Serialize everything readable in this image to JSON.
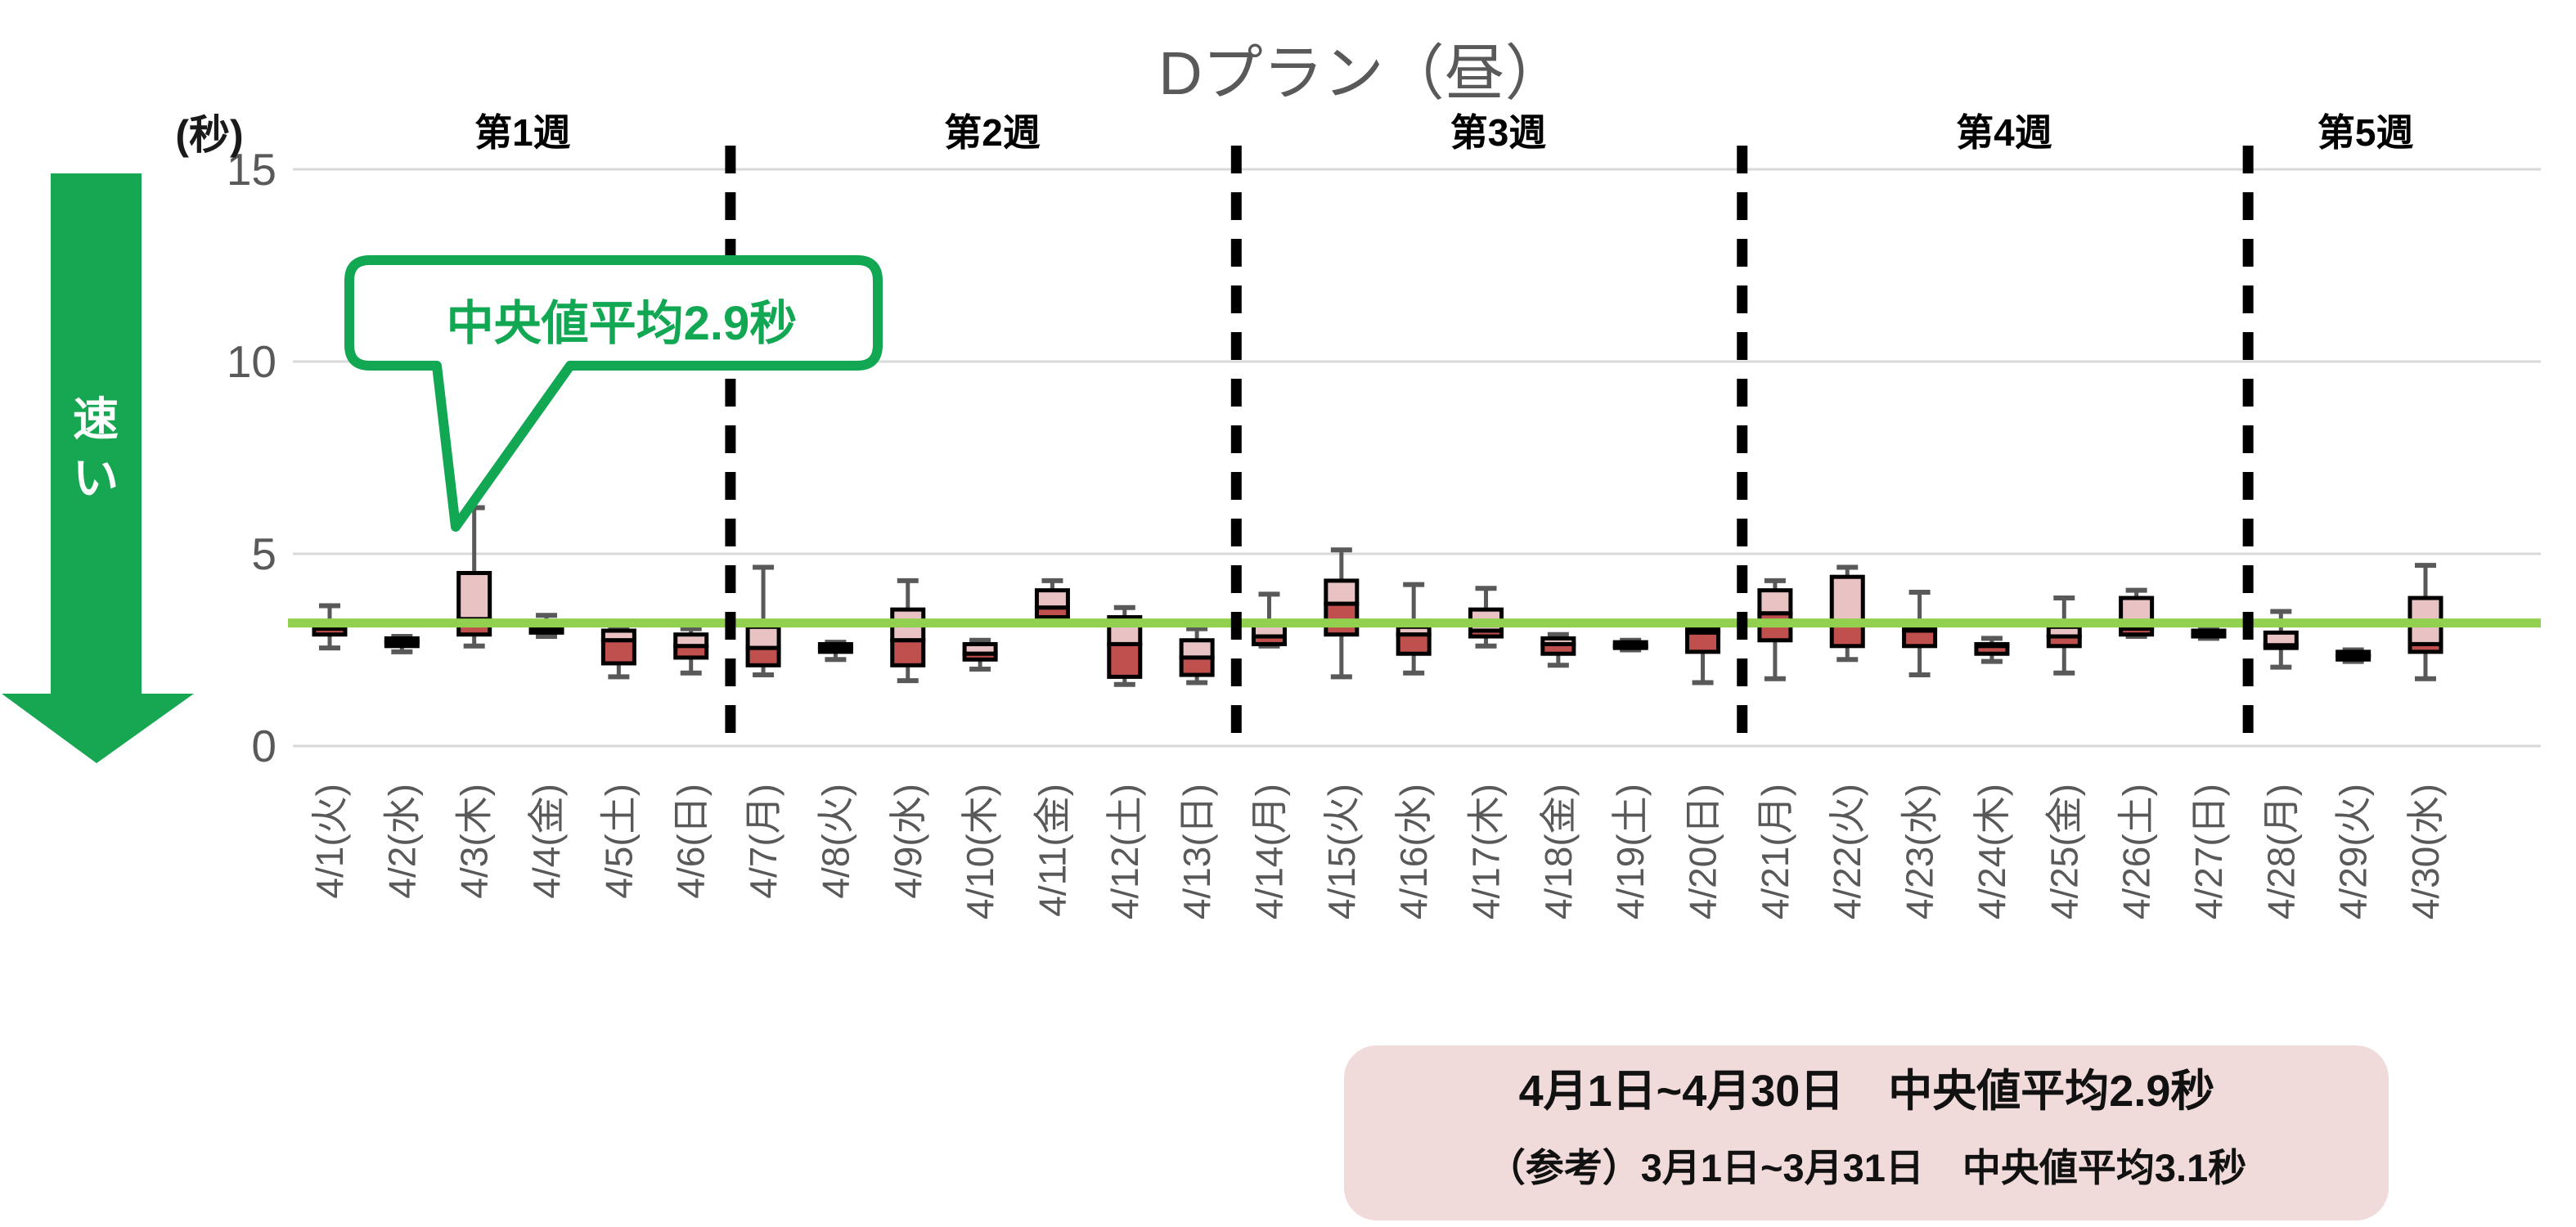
{
  "title": "Dプラン（昼）",
  "y_axis": {
    "unit": "(秒)",
    "ticks": [
      "15",
      "10",
      "5",
      "0"
    ],
    "tick_values": [
      15,
      10,
      5,
      0
    ],
    "max": 15,
    "min": 0
  },
  "arrow": {
    "label": "速い"
  },
  "callout": {
    "text": "中央値平均2.9秒"
  },
  "note": {
    "line1": "4月1日~4月30日　中央値平均2.9秒",
    "line2": "（参考）3月1日~3月31日　中央値平均3.1秒"
  },
  "weeks": [
    {
      "label": "第1週",
      "num_days": 6
    },
    {
      "label": "第2週",
      "num_days": 7
    },
    {
      "label": "第3週",
      "num_days": 7
    },
    {
      "label": "第4週",
      "num_days": 7
    },
    {
      "label": "第5週",
      "num_days": 3
    }
  ],
  "colors": {
    "box_upper": "#e9c2c4",
    "box_lower": "#c0504d",
    "box_border": "#000000",
    "whisker": "#595959",
    "grid": "#d9d9d9",
    "reference_line": "#92d050",
    "accent_green": "#12a853",
    "arrow_green": "#17a652",
    "divider": "#000000",
    "text_gray": "#595959",
    "week_label": "#000000",
    "note_bg": "#f0dada"
  },
  "chart_data": {
    "type": "boxplot",
    "title": "Dプラン（昼）",
    "xlabel": "",
    "ylabel": "(秒)",
    "ylim": [
      0,
      15
    ],
    "yticks": [
      0,
      5,
      10,
      15
    ],
    "grid": "horizontal",
    "reference_line_value": 3.2,
    "average_median_april": 2.9,
    "average_median_march": 3.1,
    "days": [
      {
        "label": "4/1(火)",
        "week": 1,
        "low": 2.55,
        "q1": 2.9,
        "median": 3.05,
        "q3": 3.15,
        "high": 3.65
      },
      {
        "label": "4/2(水)",
        "week": 1,
        "low": 2.45,
        "q1": 2.6,
        "median": 2.7,
        "q3": 2.8,
        "high": 2.85
      },
      {
        "label": "4/3(木)",
        "week": 1,
        "low": 2.6,
        "q1": 2.9,
        "median": 3.3,
        "q3": 4.5,
        "high": 6.2
      },
      {
        "label": "4/4(金)",
        "week": 1,
        "low": 2.85,
        "q1": 2.95,
        "median": 3.05,
        "q3": 3.15,
        "high": 3.4
      },
      {
        "label": "4/5(土)",
        "week": 1,
        "low": 1.8,
        "q1": 2.15,
        "median": 2.75,
        "q3": 3.0,
        "high": 3.05
      },
      {
        "label": "4/6(日)",
        "week": 1,
        "low": 1.9,
        "q1": 2.3,
        "median": 2.6,
        "q3": 2.9,
        "high": 3.05
      },
      {
        "label": "4/7(月)",
        "week": 2,
        "low": 1.85,
        "q1": 2.1,
        "median": 2.55,
        "q3": 3.1,
        "high": 4.65
      },
      {
        "label": "4/8(火)",
        "week": 2,
        "low": 2.25,
        "q1": 2.45,
        "median": 2.55,
        "q3": 2.65,
        "high": 2.7
      },
      {
        "label": "4/9(水)",
        "week": 2,
        "low": 1.7,
        "q1": 2.1,
        "median": 2.75,
        "q3": 3.55,
        "high": 4.3
      },
      {
        "label": "4/10(木)",
        "week": 2,
        "low": 2.0,
        "q1": 2.25,
        "median": 2.4,
        "q3": 2.65,
        "high": 2.75
      },
      {
        "label": "4/11(金)",
        "week": 2,
        "low": 3.2,
        "q1": 3.35,
        "median": 3.6,
        "q3": 4.05,
        "high": 4.3
      },
      {
        "label": "4/12(土)",
        "week": 2,
        "low": 1.6,
        "q1": 1.8,
        "median": 2.65,
        "q3": 3.35,
        "high": 3.6
      },
      {
        "label": "4/13(日)",
        "week": 2,
        "low": 1.65,
        "q1": 1.85,
        "median": 2.3,
        "q3": 2.75,
        "high": 3.05
      },
      {
        "label": "4/14(月)",
        "week": 3,
        "low": 2.6,
        "q1": 2.65,
        "median": 2.85,
        "q3": 3.15,
        "high": 3.95
      },
      {
        "label": "4/15(火)",
        "week": 3,
        "low": 1.8,
        "q1": 2.9,
        "median": 3.7,
        "q3": 4.3,
        "high": 5.1
      },
      {
        "label": "4/16(水)",
        "week": 3,
        "low": 1.9,
        "q1": 2.4,
        "median": 2.9,
        "q3": 3.1,
        "high": 4.2
      },
      {
        "label": "4/17(木)",
        "week": 3,
        "low": 2.6,
        "q1": 2.85,
        "median": 3.0,
        "q3": 3.55,
        "high": 4.1
      },
      {
        "label": "4/18(金)",
        "week": 3,
        "low": 2.1,
        "q1": 2.4,
        "median": 2.65,
        "q3": 2.8,
        "high": 2.9
      },
      {
        "label": "4/19(土)",
        "week": 3,
        "low": 2.5,
        "q1": 2.55,
        "median": 2.6,
        "q3": 2.7,
        "high": 2.75
      },
      {
        "label": "4/20(日)",
        "week": 3,
        "low": 1.65,
        "q1": 2.45,
        "median": 2.95,
        "q3": 3.05,
        "high": 3.1
      },
      {
        "label": "4/21(月)",
        "week": 4,
        "low": 1.75,
        "q1": 2.75,
        "median": 3.45,
        "q3": 4.05,
        "high": 4.3
      },
      {
        "label": "4/22(火)",
        "week": 4,
        "low": 2.25,
        "q1": 2.6,
        "median": 3.2,
        "q3": 4.4,
        "high": 4.65
      },
      {
        "label": "4/23(水)",
        "week": 4,
        "low": 1.85,
        "q1": 2.6,
        "median": 3.0,
        "q3": 3.1,
        "high": 4.0
      },
      {
        "label": "4/24(木)",
        "week": 4,
        "low": 2.2,
        "q1": 2.4,
        "median": 2.6,
        "q3": 2.65,
        "high": 2.8
      },
      {
        "label": "4/25(金)",
        "week": 4,
        "low": 1.9,
        "q1": 2.6,
        "median": 2.85,
        "q3": 3.1,
        "high": 3.85
      },
      {
        "label": "4/26(土)",
        "week": 4,
        "low": 2.85,
        "q1": 2.9,
        "median": 3.05,
        "q3": 3.85,
        "high": 4.05
      },
      {
        "label": "4/27(日)",
        "week": 4,
        "low": 2.8,
        "q1": 2.85,
        "median": 2.9,
        "q3": 3.0,
        "high": 3.05
      },
      {
        "label": "4/28(月)",
        "week": 5,
        "low": 2.05,
        "q1": 2.55,
        "median": 2.62,
        "q3": 2.95,
        "high": 3.5
      },
      {
        "label": "4/29(火)",
        "week": 5,
        "low": 2.2,
        "q1": 2.25,
        "median": 2.35,
        "q3": 2.45,
        "high": 2.5
      },
      {
        "label": "4/30(水)",
        "week": 5,
        "low": 1.75,
        "q1": 2.45,
        "median": 2.65,
        "q3": 3.85,
        "high": 4.7
      }
    ]
  }
}
